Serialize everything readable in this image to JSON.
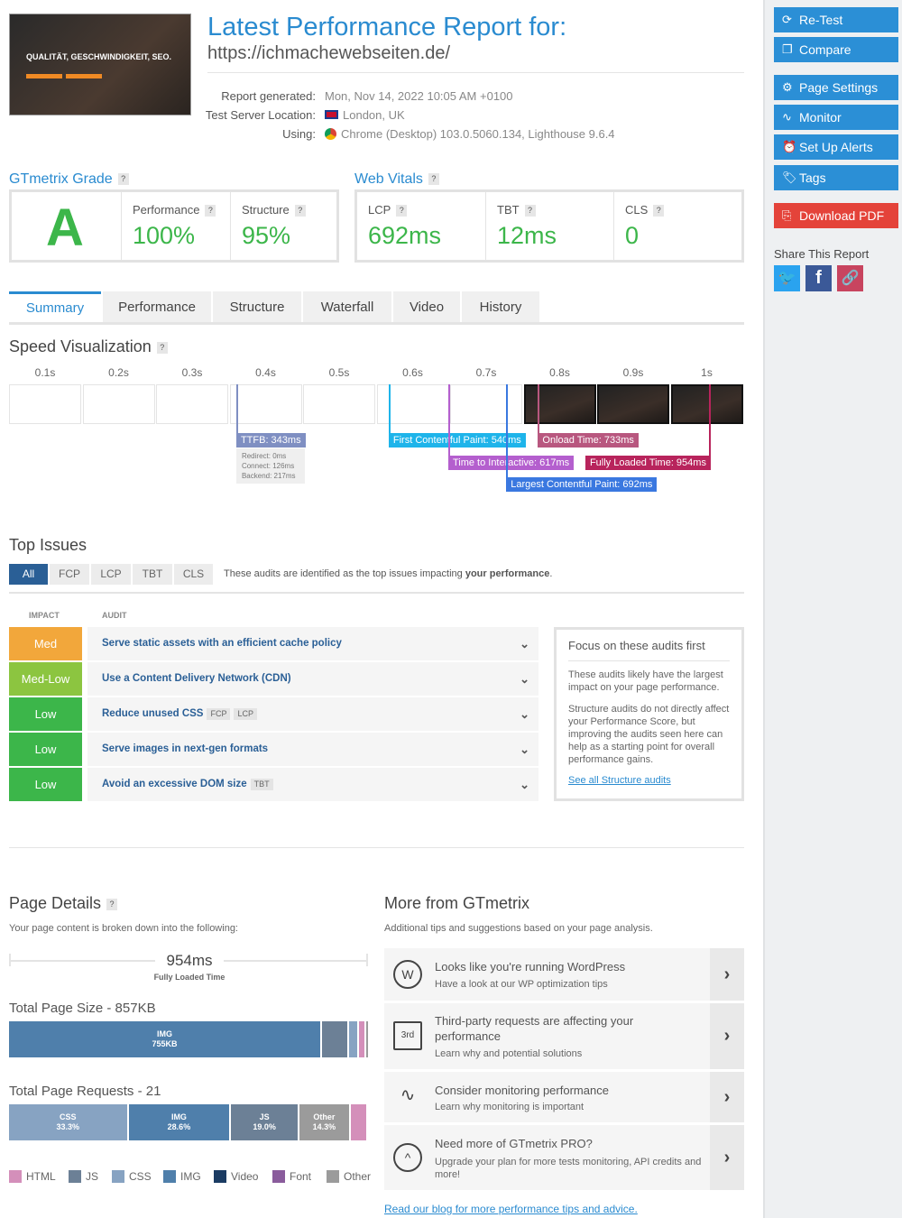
{
  "header": {
    "title": "Latest Performance Report for:",
    "url": "https://ichmachewebseiten.de/",
    "thumbnail_text": "QUALITÄT, GESCHWINDIGKEIT, SEO.",
    "meta": [
      {
        "label": "Report generated:",
        "value": "Mon, Nov 14, 2022 10:05 AM +0100"
      },
      {
        "label": "Test Server Location:",
        "value": "London, UK",
        "icon": "uk-flag-icon"
      },
      {
        "label": "Using:",
        "value": "Chrome (Desktop) 103.0.5060.134, Lighthouse 9.6.4",
        "icon": "chrome-icon"
      }
    ]
  },
  "grade": {
    "title": "GTmetrix Grade",
    "letter": "A",
    "performance_label": "Performance",
    "performance": "100%",
    "structure_label": "Structure",
    "structure": "95%"
  },
  "vitals": {
    "title": "Web Vitals",
    "lcp_label": "LCP",
    "lcp": "692ms",
    "tbt_label": "TBT",
    "tbt": "12ms",
    "cls_label": "CLS",
    "cls": "0"
  },
  "tabs": [
    "Summary",
    "Performance",
    "Structure",
    "Waterfall",
    "Video",
    "History"
  ],
  "speed": {
    "title": "Speed Visualization",
    "times": [
      "0.1s",
      "0.2s",
      "0.3s",
      "0.4s",
      "0.5s",
      "0.6s",
      "0.7s",
      "0.8s",
      "0.9s",
      "1s"
    ],
    "ttfb": "TTFB: 343ms",
    "ttfb_details": [
      "Redirect: 0ms",
      "Connect: 126ms",
      "Backend: 217ms"
    ],
    "fcp": "First Contentful Paint: 540ms",
    "tti": "Time to Interactive: 617ms",
    "lcp": "Largest Contentful Paint: 692ms",
    "onload": "Onload Time: 733ms",
    "fully": "Fully Loaded Time: 954ms",
    "colors": {
      "ttfb": "#7f8fc2",
      "fcp": "#1eb4ea",
      "tti": "#b45fce",
      "lcp": "#3a78e0",
      "onload": "#b8577f",
      "fully": "#b8245c"
    }
  },
  "issues": {
    "title": "Top Issues",
    "filters": [
      "All",
      "FCP",
      "LCP",
      "TBT",
      "CLS"
    ],
    "note_prefix": "These audits are identified as the top issues impacting ",
    "note_bold": "your performance",
    "note_suffix": ".",
    "col_impact": "IMPACT",
    "col_audit": "AUDIT",
    "rows": [
      {
        "impact": "Med",
        "color": "#f2a73b",
        "audit": "Serve static assets with an efficient cache policy",
        "tags": []
      },
      {
        "impact": "Med-Low",
        "color": "#8cc540",
        "audit": "Use a Content Delivery Network (CDN)",
        "tags": []
      },
      {
        "impact": "Low",
        "color": "#3cb64a",
        "audit": "Reduce unused CSS",
        "tags": [
          "FCP",
          "LCP"
        ]
      },
      {
        "impact": "Low",
        "color": "#3cb64a",
        "audit": "Serve images in next-gen formats",
        "tags": []
      },
      {
        "impact": "Low",
        "color": "#3cb64a",
        "audit": "Avoid an excessive DOM size",
        "tags": [
          "TBT"
        ]
      }
    ],
    "focus": {
      "title": "Focus on these audits first",
      "p1": "These audits likely have the largest impact on your page performance.",
      "p2": "Structure audits do not directly affect your Performance Score, but improving the audits seen here can help as a starting point for overall performance gains.",
      "link": "See all Structure audits"
    }
  },
  "details": {
    "title": "Page Details",
    "subtitle": "Your page content is broken down into the following:",
    "fully_loaded": "954ms",
    "fully_loaded_label": "Fully Loaded Time",
    "size_title": "Total Page Size - 857KB",
    "size_label": "IMG",
    "size_value": "755KB",
    "requests_title": "Total Page Requests - 21",
    "requests": [
      {
        "type": "CSS",
        "pct": "33.3%",
        "value": 33.3,
        "color": "#87a3c2"
      },
      {
        "type": "IMG",
        "pct": "28.6%",
        "value": 28.6,
        "color": "#4f7fab"
      },
      {
        "type": "JS",
        "pct": "19.0%",
        "value": 19.0,
        "color": "#6c8096"
      },
      {
        "type": "Other",
        "pct": "14.3%",
        "value": 14.3,
        "color": "#9b9b9b"
      },
      {
        "type": "HTML",
        "pct": "",
        "value": 4.8,
        "color": "#d48fba"
      }
    ],
    "legend": [
      {
        "name": "HTML",
        "color": "#d48fba"
      },
      {
        "name": "JS",
        "color": "#6c8096"
      },
      {
        "name": "CSS",
        "color": "#87a3c2"
      },
      {
        "name": "IMG",
        "color": "#4f7fab"
      },
      {
        "name": "Video",
        "color": "#1b3c63"
      },
      {
        "name": "Font",
        "color": "#8a5c9c"
      },
      {
        "name": "Other",
        "color": "#9b9b9b"
      }
    ]
  },
  "more": {
    "title": "More from GTmetrix",
    "subtitle": "Additional tips and suggestions based on your page analysis.",
    "items": [
      {
        "icon": "wordpress-icon",
        "title": "Looks like you're running WordPress",
        "sub": "Have a look at our WP optimization tips"
      },
      {
        "icon": "third-party-icon",
        "title": "Third-party requests are affecting your performance",
        "sub": "Learn why and potential solutions"
      },
      {
        "icon": "pulse-icon",
        "title": "Consider monitoring performance",
        "sub": "Learn why monitoring is important"
      },
      {
        "icon": "upgrade-icon",
        "title": "Need more of GTmetrix PRO?",
        "sub": "Upgrade your plan for more tests monitoring, API credits and more!"
      }
    ],
    "blog_link": "Read our blog for more performance tips and advice."
  },
  "sidebar": {
    "buttons": [
      "Re-Test",
      "Compare",
      "Page Settings",
      "Monitor",
      "Set Up Alerts",
      "Tags"
    ],
    "pdf": "Download PDF",
    "share_title": "Share This Report"
  }
}
